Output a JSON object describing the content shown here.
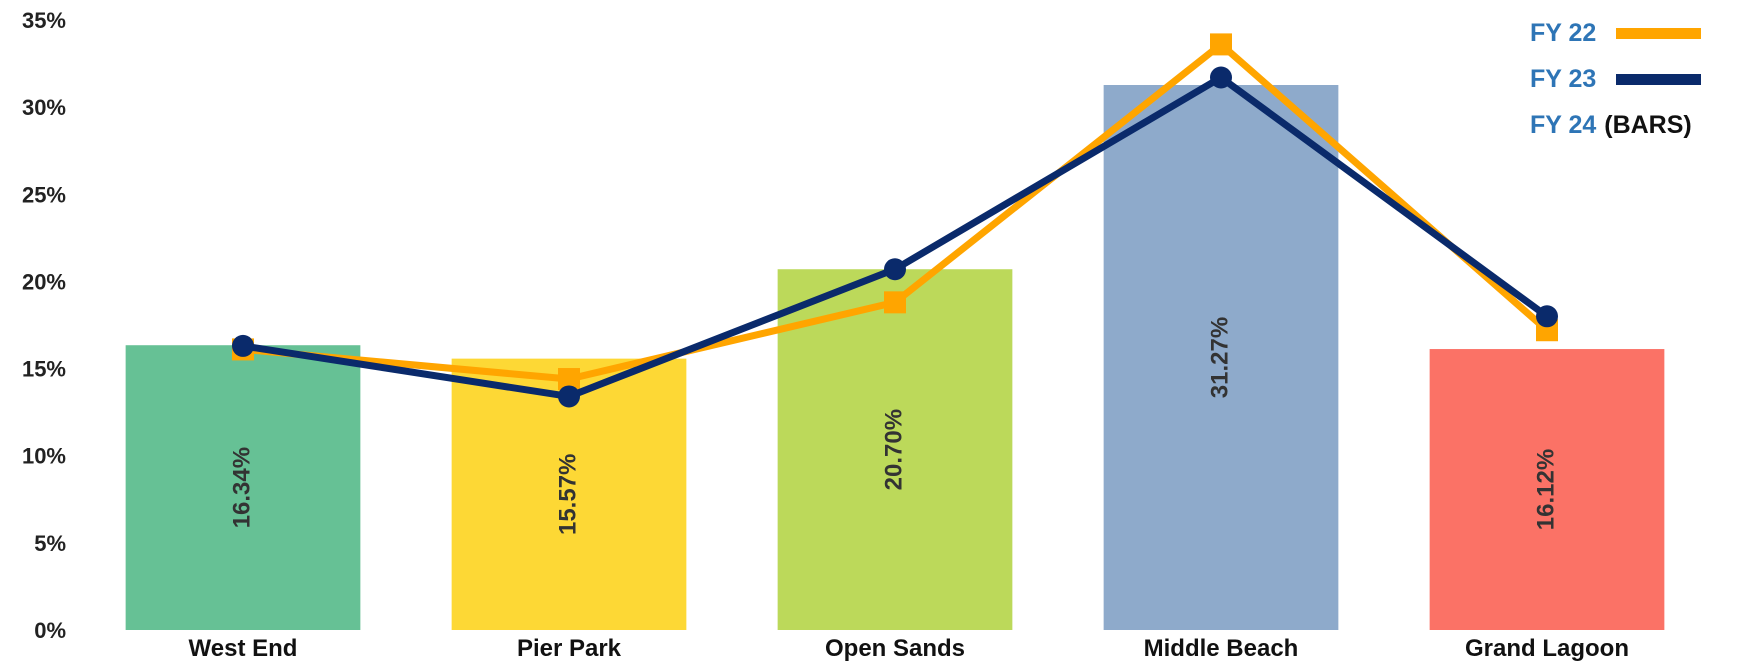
{
  "chart_data": {
    "type": "bar",
    "categories": [
      "West End",
      "Pier Park",
      "Open Sands",
      "Middle Beach",
      "Grand Lagoon"
    ],
    "bars": {
      "name": "FY 24",
      "values": [
        16.34,
        15.57,
        20.7,
        31.27,
        16.12
      ],
      "labels": [
        "16.34%",
        "15.57%",
        "20.70%",
        "31.27%",
        "16.12%"
      ],
      "colors": [
        "#66c195",
        "#fdd835",
        "#bcd95a",
        "#8eaacb",
        "#fb7266"
      ]
    },
    "lines": [
      {
        "name": "FY 22",
        "values": [
          16.1,
          14.4,
          18.8,
          33.6,
          17.2
        ],
        "color": "#ffa500",
        "marker": "square"
      },
      {
        "name": "FY 23",
        "values": [
          16.3,
          13.4,
          20.7,
          31.7,
          18.0
        ],
        "color": "#0a2a6b",
        "marker": "circle"
      }
    ],
    "ylim": [
      0,
      35
    ],
    "yticks": [
      "0%",
      "5%",
      "10%",
      "15%",
      "20%",
      "25%",
      "30%",
      "35%"
    ],
    "grid": false,
    "legend_position": "top-right",
    "legend": [
      {
        "name": "FY 22",
        "note": "",
        "color": "#ffa500"
      },
      {
        "name": "FY 23",
        "note": "",
        "color": "#0a2a6b"
      },
      {
        "name": "FY 24",
        "note": "(BARS)",
        "color": ""
      }
    ]
  }
}
